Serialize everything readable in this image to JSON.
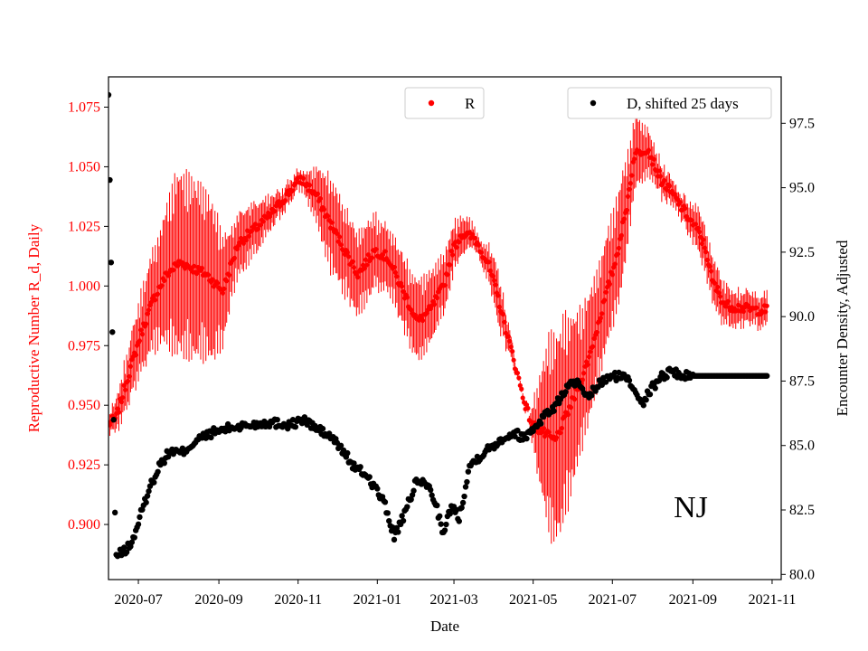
{
  "chart_data": {
    "type": "scatter",
    "title": "",
    "annotation": "NJ",
    "xlabel": "Date",
    "ylabel_left": "Reproductive Number R_d, Daily",
    "ylabel_right": "Encounter Density, Adjusted",
    "x_ticks": [
      "2020-07",
      "2020-09",
      "2020-11",
      "2021-01",
      "2021-03",
      "2021-05",
      "2021-07",
      "2021-09",
      "2021-11"
    ],
    "y_left_ticks": [
      "0.900",
      "0.925",
      "0.950",
      "0.975",
      "1.000",
      "1.025",
      "1.050",
      "1.075"
    ],
    "y_right_ticks": [
      "80.0",
      "82.5",
      "85.0",
      "87.5",
      "90.0",
      "92.5",
      "95.0",
      "97.5"
    ],
    "x_range": [
      "2020-06-08",
      "2021-11-08"
    ],
    "y_left_range": [
      0.8769,
      1.0877
    ],
    "y_right_range": [
      79.8,
      99.3
    ],
    "legend": [
      {
        "label": "R",
        "color": "#ff0000",
        "position": "top-center"
      },
      {
        "label": "D, shifted 25 days",
        "color": "#000000",
        "position": "top-right"
      }
    ],
    "colors": {
      "r_series": "#ff0000",
      "d_series": "#000000",
      "left_axis": "#ff0000"
    },
    "series": [
      {
        "name": "R",
        "axis": "left",
        "color": "#ff0000",
        "start": "2020-06-08",
        "end": "2021-10-28",
        "knots": [
          [
            0,
            0.942
          ],
          [
            6,
            0.945
          ],
          [
            15,
            0.962
          ],
          [
            25,
            0.98
          ],
          [
            35,
            0.995
          ],
          [
            45,
            1.005
          ],
          [
            55,
            1.01
          ],
          [
            75,
            1.005
          ],
          [
            88,
            0.998
          ],
          [
            100,
            1.018
          ],
          [
            115,
            1.025
          ],
          [
            125,
            1.03
          ],
          [
            140,
            1.04
          ],
          [
            148,
            1.045
          ],
          [
            160,
            1.038
          ],
          [
            172,
            1.025
          ],
          [
            182,
            1.015
          ],
          [
            192,
            1.005
          ],
          [
            205,
            1.015
          ],
          [
            215,
            1.012
          ],
          [
            225,
            1.0
          ],
          [
            238,
            0.985
          ],
          [
            248,
            0.99
          ],
          [
            258,
            1.0
          ],
          [
            265,
            1.015
          ],
          [
            272,
            1.022
          ],
          [
            282,
            1.02
          ],
          [
            292,
            1.01
          ],
          [
            300,
            0.995
          ],
          [
            307,
            0.98
          ],
          [
            314,
            0.965
          ],
          [
            320,
            0.952
          ],
          [
            326,
            0.942
          ],
          [
            336,
            0.938
          ],
          [
            344,
            0.935
          ],
          [
            352,
            0.945
          ],
          [
            360,
            0.955
          ],
          [
            370,
            0.97
          ],
          [
            380,
            0.99
          ],
          [
            390,
            1.01
          ],
          [
            398,
            1.03
          ],
          [
            405,
            1.055
          ],
          [
            415,
            1.058
          ],
          [
            425,
            1.045
          ],
          [
            435,
            1.038
          ],
          [
            445,
            1.03
          ],
          [
            455,
            1.022
          ],
          [
            460,
            1.015
          ],
          [
            465,
            1.002
          ],
          [
            475,
            0.992
          ],
          [
            496,
            0.99
          ]
        ],
        "amplitude_knots": [
          [
            0,
            0.004
          ],
          [
            20,
            0.015
          ],
          [
            40,
            0.025
          ],
          [
            52,
            0.04
          ],
          [
            64,
            0.04
          ],
          [
            80,
            0.035
          ],
          [
            95,
            0.015
          ],
          [
            110,
            0.012
          ],
          [
            130,
            0.006
          ],
          [
            150,
            0.004
          ],
          [
            170,
            0.02
          ],
          [
            195,
            0.018
          ],
          [
            215,
            0.014
          ],
          [
            240,
            0.018
          ],
          [
            262,
            0.012
          ],
          [
            285,
            0.004
          ],
          [
            300,
            0.012
          ],
          [
            314,
            0.002
          ],
          [
            324,
            0.002
          ],
          [
            340,
            0.045
          ],
          [
            350,
            0.045
          ],
          [
            365,
            0.03
          ],
          [
            380,
            0.025
          ],
          [
            395,
            0.025
          ],
          [
            402,
            0.018
          ],
          [
            420,
            0.008
          ],
          [
            440,
            0.005
          ],
          [
            455,
            0.01
          ],
          [
            470,
            0.01
          ],
          [
            480,
            0.008
          ],
          [
            496,
            0.007
          ]
        ]
      },
      {
        "name": "D, shifted 25 days",
        "axis": "right",
        "color": "#000000",
        "start": "2020-06-08",
        "end": "2021-10-28",
        "early_points": [
          [
            0,
            98.6
          ],
          [
            1,
            95.3
          ],
          [
            2,
            92.1
          ],
          [
            3,
            89.4
          ],
          [
            4,
            86.0
          ],
          [
            5,
            82.4
          ]
        ],
        "knots": [
          [
            6,
            80.7
          ],
          [
            12,
            80.9
          ],
          [
            18,
            81.2
          ],
          [
            24,
            82.2
          ],
          [
            32,
            83.4
          ],
          [
            40,
            84.3
          ],
          [
            48,
            84.8
          ],
          [
            56,
            84.7
          ],
          [
            68,
            85.2
          ],
          [
            80,
            85.5
          ],
          [
            95,
            85.7
          ],
          [
            110,
            85.8
          ],
          [
            125,
            85.9
          ],
          [
            140,
            85.8
          ],
          [
            150,
            86.0
          ],
          [
            162,
            85.6
          ],
          [
            172,
            85.3
          ],
          [
            182,
            84.7
          ],
          [
            190,
            84.1
          ],
          [
            198,
            83.9
          ],
          [
            205,
            83.4
          ],
          [
            212,
            82.8
          ],
          [
            220,
            81.5
          ],
          [
            228,
            82.3
          ],
          [
            236,
            83.5
          ],
          [
            244,
            83.6
          ],
          [
            252,
            82.8
          ],
          [
            258,
            81.5
          ],
          [
            264,
            82.7
          ],
          [
            270,
            82.2
          ],
          [
            278,
            84.2
          ],
          [
            286,
            84.6
          ],
          [
            296,
            85.0
          ],
          [
            304,
            85.3
          ],
          [
            312,
            85.5
          ],
          [
            320,
            85.3
          ],
          [
            328,
            85.7
          ],
          [
            336,
            86.2
          ],
          [
            344,
            86.5
          ],
          [
            352,
            87.2
          ],
          [
            360,
            87.5
          ],
          [
            368,
            86.8
          ],
          [
            376,
            87.3
          ],
          [
            384,
            87.6
          ],
          [
            392,
            87.7
          ],
          [
            400,
            87.6
          ],
          [
            406,
            87.1
          ],
          [
            412,
            86.7
          ],
          [
            418,
            87.2
          ],
          [
            426,
            87.7
          ],
          [
            434,
            87.9
          ],
          [
            442,
            87.7
          ],
          [
            455,
            87.7
          ],
          [
            496,
            87.7
          ]
        ]
      }
    ]
  }
}
